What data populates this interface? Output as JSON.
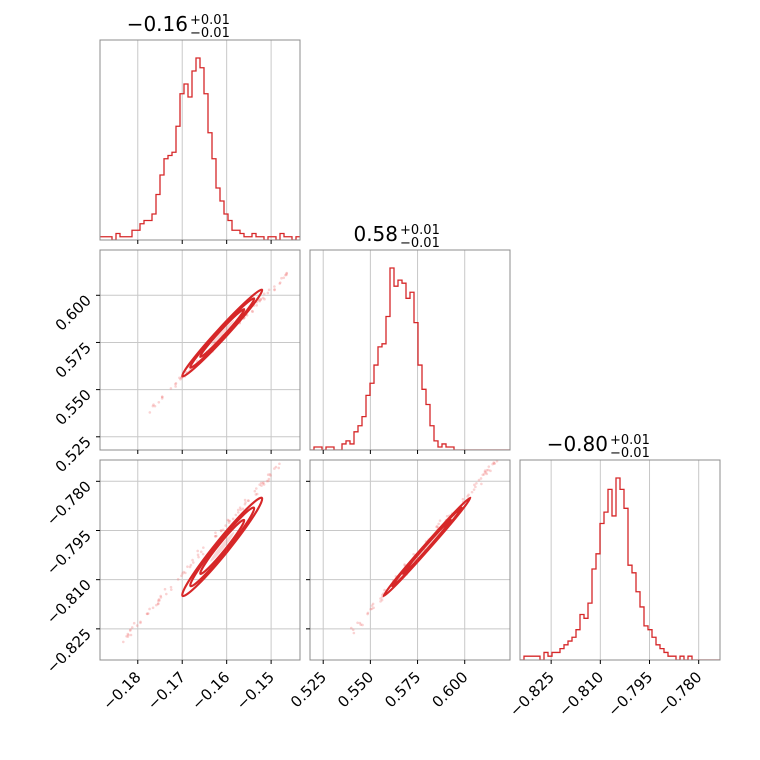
{
  "chart_data": {
    "type": "corner",
    "colors": {
      "primary": "#d62728",
      "points": "#f08080",
      "grid": "#c8c8c8",
      "frame": "#8c8c8c"
    },
    "grid": true,
    "parameters": [
      {
        "title": {
          "value": "−0.16",
          "upper": "+0.01",
          "lower": "−0.01"
        },
        "range": [
          -0.1885,
          -0.1435
        ],
        "ticks": [
          -0.18,
          -0.17,
          -0.16,
          -0.15
        ],
        "tick_labels": [
          "−0.18",
          "−0.17",
          "−0.16",
          "−0.15"
        ],
        "hist": {
          "edges_start": -0.1885,
          "bin_width": 0.0009,
          "counts": [
            1,
            1,
            1,
            0,
            2,
            1,
            1,
            1,
            3,
            3,
            5,
            6,
            6,
            8,
            14,
            20,
            25,
            26,
            27,
            35,
            45,
            48,
            44,
            52,
            56,
            53,
            45,
            33,
            25,
            16,
            12,
            8,
            6,
            3,
            3,
            2,
            1,
            1,
            2,
            1,
            1,
            0,
            1,
            1,
            0,
            2,
            1,
            1,
            0,
            1
          ]
        }
      },
      {
        "title": {
          "value": "0.58",
          "upper": "+0.01",
          "lower": "−0.01"
        },
        "range": [
          0.518,
          0.624
        ],
        "ticks": [
          0.525,
          0.55,
          0.575,
          0.6
        ],
        "tick_labels": [
          "0.525",
          "0.550",
          "0.575",
          "0.600"
        ],
        "hist": {
          "edges_start": 0.518,
          "bin_width": 0.00212,
          "counts": [
            0,
            1,
            1,
            0,
            1,
            1,
            0,
            0,
            2,
            3,
            2,
            6,
            8,
            11,
            18,
            22,
            28,
            34,
            35,
            44,
            60,
            54,
            56,
            55,
            50,
            52,
            42,
            28,
            20,
            15,
            8,
            3,
            1,
            2,
            1,
            1,
            0,
            0,
            0,
            0,
            0,
            0,
            0,
            0,
            0,
            0,
            0,
            0,
            0,
            0
          ]
        }
      },
      {
        "title": {
          "value": "−0.80",
          "upper": "+0.01",
          "lower": "−0.01"
        },
        "range": [
          -0.8345,
          -0.7735
        ],
        "ticks": [
          -0.825,
          -0.81,
          -0.795,
          -0.78
        ],
        "tick_labels": [
          "−0.825",
          "−0.810",
          "−0.795",
          "−0.780"
        ],
        "hist": {
          "edges_start": -0.8345,
          "bin_width": 0.00122,
          "counts": [
            0,
            1,
            1,
            1,
            1,
            0,
            2,
            1,
            2,
            2,
            3,
            4,
            5,
            6,
            8,
            12,
            11,
            15,
            24,
            28,
            36,
            39,
            45,
            38,
            48,
            45,
            40,
            25,
            23,
            18,
            14,
            9,
            8,
            6,
            4,
            3,
            2,
            1,
            1,
            0,
            1,
            0,
            1,
            0,
            0,
            0,
            0,
            0,
            0,
            0
          ]
        }
      }
    ],
    "pairs": [
      {
        "x": 0,
        "y": 1,
        "mean": [
          -0.161,
          0.58
        ],
        "sd": [
          0.0045,
          0.0115
        ],
        "rho": 0.985,
        "scatter_extent": [
          -0.178,
          0.538,
          -0.146,
          0.612
        ]
      },
      {
        "x": 0,
        "y": 2,
        "mean": [
          -0.161,
          -0.8
        ],
        "sd": [
          0.0045,
          0.0075
        ],
        "rho": 0.975,
        "scatter_extent": [
          -0.183,
          -0.828,
          -0.148,
          -0.775
        ]
      },
      {
        "x": 1,
        "y": 2,
        "mean": [
          0.58,
          -0.8
        ],
        "sd": [
          0.0115,
          0.0075
        ],
        "rho": 0.996,
        "scatter_extent": [
          0.54,
          -0.826,
          0.618,
          -0.773
        ]
      }
    ]
  }
}
